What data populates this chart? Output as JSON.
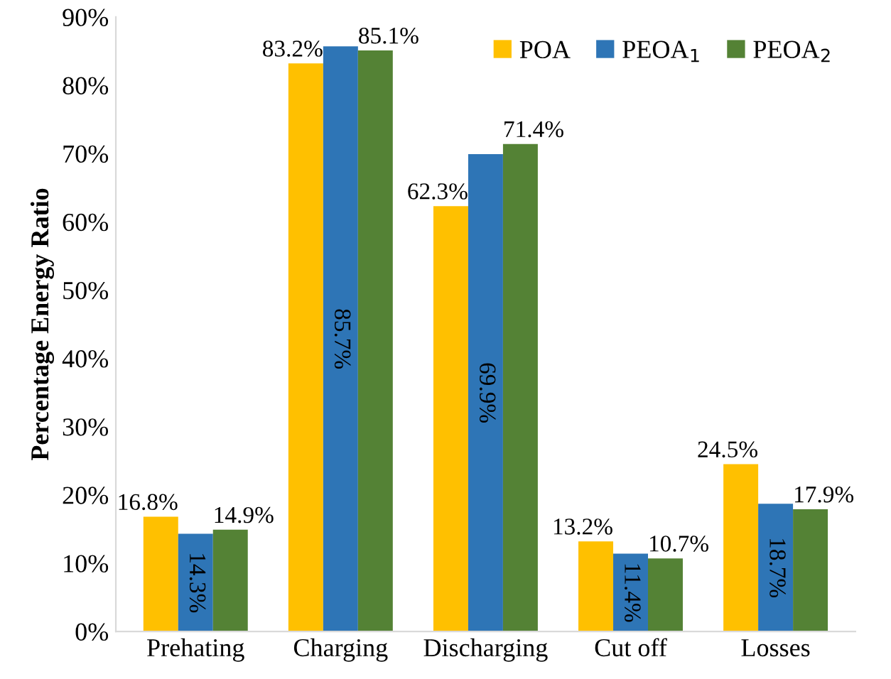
{
  "chart_data": {
    "type": "bar",
    "ylabel": "Percentage Energy Ratio",
    "categories": [
      "Prehating",
      "Charging",
      "Discharging",
      "Cut off",
      "Losses"
    ],
    "series": [
      {
        "name": "POA",
        "color": "#ffc000",
        "values": [
          16.8,
          83.2,
          62.3,
          13.2,
          24.5
        ],
        "value_labels": [
          "16.8%",
          "83.2%",
          "62.3%",
          "13.2%",
          "24.5%"
        ]
      },
      {
        "name": "PEOA$_{1}$",
        "color": "#2e75b6",
        "values": [
          14.3,
          85.7,
          69.9,
          11.4,
          18.7
        ],
        "value_labels": [
          "14.3%",
          "85.7%",
          "69.9%",
          "11.4%",
          "18.7%"
        ]
      },
      {
        "name": "PEOA$_{2}$",
        "color": "#548235",
        "values": [
          14.9,
          85.1,
          71.4,
          10.7,
          17.9
        ],
        "value_labels": [
          "14.9%",
          "85.1%",
          "71.4%",
          "10.7%",
          "17.9%"
        ]
      }
    ],
    "ylim": [
      0,
      90
    ],
    "yticks": [
      {
        "value": 0,
        "label": "0%"
      },
      {
        "value": 10,
        "label": "10%"
      },
      {
        "value": 20,
        "label": "20%"
      },
      {
        "value": 30,
        "label": "30%"
      },
      {
        "value": 40,
        "label": "40%"
      },
      {
        "value": 50,
        "label": "50%"
      },
      {
        "value": 60,
        "label": "60%"
      },
      {
        "value": 70,
        "label": "70%"
      },
      {
        "value": 80,
        "label": "80%"
      },
      {
        "value": 90,
        "label": "90%"
      }
    ],
    "grid": false,
    "legend": "top right"
  }
}
